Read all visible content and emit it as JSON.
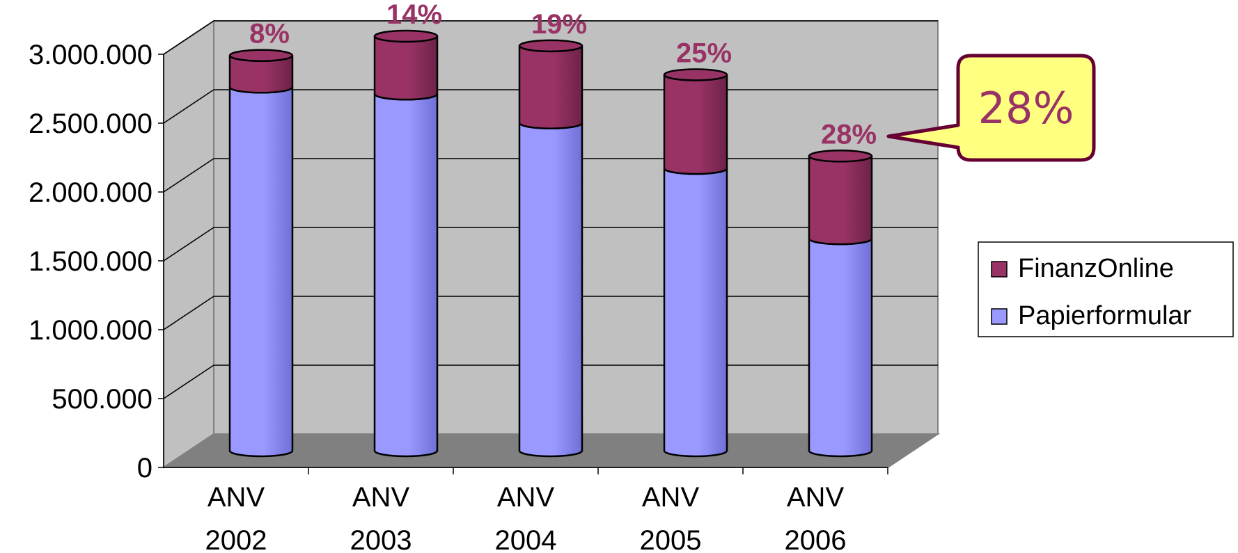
{
  "colors": {
    "wall": "#c0c0c0",
    "floor": "#808080",
    "papier": "#9999ff",
    "papier_dark": "#6f6fd6",
    "finanz": "#993366",
    "finanz_dark": "#6e2248",
    "label": "#993366",
    "callout_fill": "#ffff80",
    "callout_stroke": "#660033"
  },
  "chart_data": {
    "type": "bar",
    "stacked": true,
    "three_d": true,
    "categories": [
      [
        "ANV",
        "2002"
      ],
      [
        "ANV",
        "2003"
      ],
      [
        "ANV",
        "2004"
      ],
      [
        "ANV",
        "2005"
      ],
      [
        "ANV",
        "2006"
      ]
    ],
    "series": [
      {
        "name": "Papierformular",
        "values": [
          2640000,
          2590000,
          2380000,
          2050000,
          1540000
        ]
      },
      {
        "name": "FinanzOnline",
        "values": [
          230000,
          420000,
          560000,
          680000,
          600000
        ]
      }
    ],
    "data_labels": [
      "8%",
      "14%",
      "19%",
      "25%",
      "28%"
    ],
    "ylim": [
      0,
      3000000
    ],
    "yticks": [
      0,
      500000,
      1000000,
      1500000,
      2000000,
      2500000,
      3000000
    ],
    "ytick_labels": [
      "0",
      "500.000",
      "1.000.000",
      "1.500.000",
      "2.000.000",
      "2.500.000",
      "3.000.000"
    ],
    "grid": true,
    "legend_position": "right",
    "legend": [
      "FinanzOnline",
      "Papierformular"
    ],
    "callout": {
      "text": "28%",
      "points_to": "ANV 2006"
    }
  }
}
